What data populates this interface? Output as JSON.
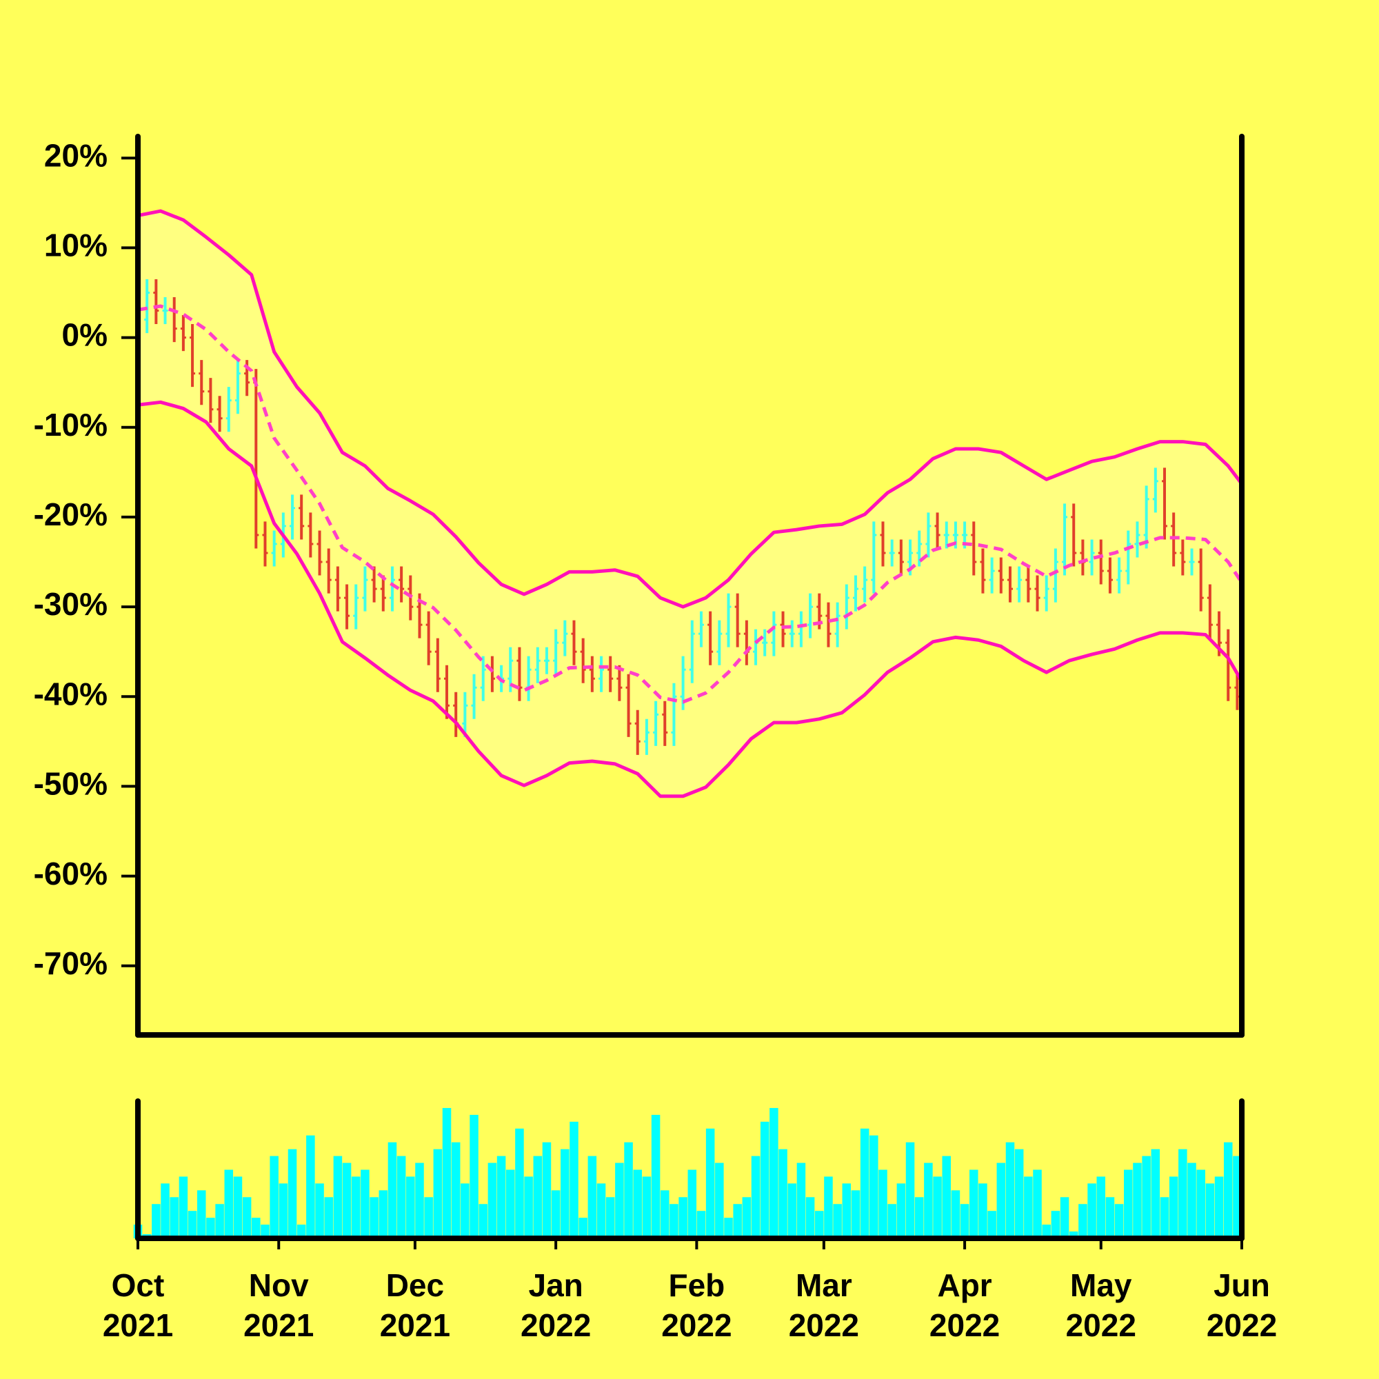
{
  "chart_data": {
    "type": "ohlc",
    "background": "#ffff5a",
    "x": [
      0,
      2,
      4,
      6,
      8,
      10,
      12,
      14,
      16,
      18,
      20,
      22,
      24,
      26,
      28,
      30,
      32,
      34,
      36,
      38,
      40,
      42,
      44,
      46,
      48,
      50,
      52,
      54,
      56,
      58,
      60,
      62,
      64,
      66,
      68,
      70,
      72,
      74,
      76,
      78,
      80,
      82,
      84,
      86,
      88,
      90,
      92,
      94,
      96,
      98,
      100,
      102,
      104,
      106,
      108,
      110,
      112,
      114,
      116,
      118,
      120,
      122,
      124,
      126,
      128,
      130,
      132,
      134,
      136,
      138,
      140,
      142,
      144,
      146,
      148,
      150,
      152,
      154,
      156,
      158,
      160,
      162,
      164,
      166,
      168,
      170,
      172,
      174,
      176,
      178,
      180,
      182,
      184,
      186,
      188,
      190,
      192,
      194,
      196,
      198,
      200,
      202,
      204,
      206,
      208,
      210,
      212,
      214,
      216,
      218,
      220,
      222,
      224,
      226,
      228,
      230,
      232,
      234,
      236,
      238,
      240,
      242
    ],
    "open": [
      1,
      2,
      5,
      3,
      3,
      1,
      0,
      -4,
      -6,
      -8,
      -9,
      -7,
      -4,
      -5,
      -22,
      -24,
      -23,
      -21,
      -19,
      -21,
      -23,
      -25,
      -27,
      -29,
      -31,
      -29,
      -27,
      -28,
      -29,
      -27,
      -28,
      -30,
      -32,
      -35,
      -38,
      -41,
      -43,
      -41,
      -39,
      -37,
      -38,
      -38,
      -36,
      -39,
      -37,
      -36,
      -36,
      -34,
      -33,
      -35,
      -37,
      -38,
      -37,
      -38,
      -39,
      -43,
      -45,
      -44,
      -42,
      -44,
      -40,
      -37,
      -33,
      -32,
      -35,
      -33,
      -30,
      -33,
      -35,
      -34,
      -34,
      -32,
      -33,
      -33,
      -32,
      -30,
      -31,
      -33,
      -31,
      -29,
      -28,
      -27,
      -22,
      -24,
      -24,
      -25,
      -24,
      -23,
      -21,
      -22,
      -22,
      -22,
      -22,
      -25,
      -27,
      -26,
      -27,
      -28,
      -27,
      -28,
      -29,
      -28,
      -25,
      -20,
      -24,
      -25,
      -24,
      -26,
      -27,
      -26,
      -23,
      -22,
      -18,
      -16,
      -21,
      -24,
      -25,
      -25,
      -29,
      -32,
      -34,
      -39
    ],
    "high": [
      3.5,
      6.5,
      6.5,
      4.5,
      4.5,
      2.5,
      1.5,
      -2.5,
      -4.5,
      -6.5,
      -5.5,
      -2.5,
      -2.5,
      -3.5,
      -20.5,
      -21.5,
      -19.5,
      -17.5,
      -17.5,
      -19.5,
      -21.5,
      -23.5,
      -25.5,
      -27.5,
      -27.5,
      -25.5,
      -25.5,
      -26.5,
      -25.5,
      -25.5,
      -26.5,
      -28.5,
      -30.5,
      -33.5,
      -36.5,
      -39.5,
      -39.5,
      -37.5,
      -35.5,
      -35.5,
      -36.5,
      -34.5,
      -34.5,
      -35.5,
      -34.5,
      -34.5,
      -32.5,
      -31.5,
      -31.5,
      -33.5,
      -35.5,
      -35.5,
      -35.5,
      -36.5,
      -37.5,
      -41.5,
      -42.5,
      -40.5,
      -40.5,
      -38.5,
      -35.5,
      -31.5,
      -30.5,
      -30.5,
      -31.5,
      -28.5,
      -28.5,
      -31.5,
      -32.5,
      -32.5,
      -30.5,
      -30.5,
      -31.5,
      -30.5,
      -28.5,
      -28.5,
      -29.5,
      -29.5,
      -27.5,
      -26.5,
      -25.5,
      -20.5,
      -20.5,
      -22.5,
      -22.5,
      -22.5,
      -21.5,
      -19.5,
      -19.5,
      -20.5,
      -20.5,
      -20.5,
      -20.5,
      -23.5,
      -24.5,
      -24.5,
      -25.5,
      -25.5,
      -25.5,
      -26.5,
      -26.5,
      -23.5,
      -18.5,
      -18.5,
      -22.5,
      -22.5,
      -22.5,
      -24.5,
      -24.5,
      -21.5,
      -20.5,
      -16.5,
      -14.5,
      -14.5,
      -19.5,
      -22.5,
      -23.5,
      -23.5,
      -27.5,
      -30.5,
      -32.5,
      -37.5
    ],
    "low": [
      -0.5,
      0.5,
      1.5,
      1.5,
      -0.5,
      -1.5,
      -5.5,
      -7.5,
      -9.5,
      -10.5,
      -10.5,
      -8.5,
      -6.5,
      -23.5,
      -25.5,
      -25.5,
      -24.5,
      -22.5,
      -22.5,
      -24.5,
      -26.5,
      -28.5,
      -30.5,
      -32.5,
      -32.5,
      -30.5,
      -29.5,
      -30.5,
      -30.5,
      -29.5,
      -31.5,
      -33.5,
      -36.5,
      -39.5,
      -42.5,
      -44.5,
      -44.5,
      -42.5,
      -40.5,
      -39.5,
      -39.5,
      -39.5,
      -40.5,
      -40.5,
      -38.5,
      -37.5,
      -37.5,
      -35.5,
      -36.5,
      -38.5,
      -39.5,
      -39.5,
      -39.5,
      -40.5,
      -44.5,
      -46.5,
      -46.5,
      -45.5,
      -45.5,
      -45.5,
      -41.5,
      -38.5,
      -34.5,
      -36.5,
      -36.5,
      -34.5,
      -34.5,
      -36.5,
      -36.5,
      -35.5,
      -35.5,
      -34.5,
      -34.5,
      -34.5,
      -33.5,
      -32.5,
      -34.5,
      -34.5,
      -32.5,
      -30.5,
      -29.5,
      -28.5,
      -25.5,
      -25.5,
      -26.5,
      -26.5,
      -25.5,
      -24.5,
      -23.5,
      -23.5,
      -23.5,
      -23.5,
      -26.5,
      -28.5,
      -28.5,
      -28.5,
      -29.5,
      -29.5,
      -29.5,
      -30.5,
      -30.5,
      -29.5,
      -26.5,
      -25.5,
      -26.5,
      -26.5,
      -27.5,
      -28.5,
      -28.5,
      -27.5,
      -24.5,
      -23.5,
      -19.5,
      -22.5,
      -25.5,
      -26.5,
      -26.5,
      -30.5,
      -33.5,
      -35.5,
      -40.5,
      -41.5
    ],
    "close": [
      2,
      5,
      3,
      3,
      1,
      0,
      -4,
      -6,
      -8,
      -9,
      -7,
      -4,
      -5,
      -22,
      -24,
      -23,
      -21,
      -19,
      -21,
      -23,
      -25,
      -27,
      -29,
      -31,
      -29,
      -27,
      -28,
      -29,
      -27,
      -28,
      -30,
      -32,
      -35,
      -38,
      -41,
      -43,
      -41,
      -39,
      -37,
      -38,
      -38,
      -36,
      -39,
      -37,
      -36,
      -36,
      -34,
      -33,
      -35,
      -37,
      -38,
      -37,
      -38,
      -39,
      -43,
      -45,
      -44,
      -42,
      -44,
      -40,
      -37,
      -33,
      -32,
      -35,
      -33,
      -30,
      -33,
      -35,
      -34,
      -34,
      -32,
      -33,
      -33,
      -32,
      -30,
      -31,
      -33,
      -31,
      -29,
      -28,
      -27,
      -22,
      -24,
      -24,
      -25,
      -24,
      -23,
      -21,
      -22,
      -22,
      -22,
      -22,
      -25,
      -27,
      -26,
      -27,
      -28,
      -27,
      -28,
      -29,
      -28,
      -25,
      -20,
      -24,
      -25,
      -24,
      -26,
      -27,
      -26,
      -23,
      -22,
      -18,
      -16,
      -21,
      -24,
      -25,
      -25,
      -29,
      -32,
      -34,
      -39,
      -40
    ],
    "up_color": "#40ffe8",
    "down_color": "#e0402a",
    "xlim": [
      0,
      243
    ],
    "xticks": [
      {
        "value": 0,
        "label": "Oct 2021"
      },
      {
        "value": 31,
        "label": "Nov 2021"
      },
      {
        "value": 61,
        "label": "Dec 2021"
      },
      {
        "value": 92,
        "label": "Jan 2022"
      },
      {
        "value": 123,
        "label": "Feb 2022"
      },
      {
        "value": 151,
        "label": "Mar 2022"
      },
      {
        "value": 182,
        "label": "Apr 2022"
      },
      {
        "value": 212,
        "label": "May 2022"
      },
      {
        "value": 243,
        "label": "Jun 2022"
      }
    ],
    "ylim": [
      -77.7,
      22.4
    ],
    "yticks": [
      {
        "value": -70,
        "label": "-70%"
      },
      {
        "value": -60,
        "label": "-60%"
      },
      {
        "value": -50,
        "label": "-50%"
      },
      {
        "value": -40,
        "label": "-40%"
      },
      {
        "value": -30,
        "label": "-30%"
      },
      {
        "value": -20,
        "label": "-20%"
      },
      {
        "value": -10,
        "label": "-10%"
      },
      {
        "value": 0,
        "label": "0%"
      },
      {
        "value": 10,
        "label": "10%"
      },
      {
        "value": 20,
        "label": "20%"
      }
    ],
    "bands": {
      "x": [
        0,
        5,
        10,
        15,
        20,
        25,
        30,
        35,
        40,
        45,
        50,
        55,
        60,
        65,
        70,
        75,
        80,
        85,
        90,
        95,
        100,
        105,
        110,
        115,
        120,
        125,
        130,
        135,
        140,
        145,
        150,
        155,
        160,
        165,
        170,
        175,
        180,
        185,
        190,
        195,
        200,
        205,
        210,
        215,
        220,
        225,
        230,
        235,
        240,
        243
      ],
      "upper": [
        13.6,
        14.1,
        13.1,
        11.2,
        9.2,
        7,
        -1.6,
        -5.5,
        -8.4,
        -12.8,
        -14.3,
        -16.8,
        -18.2,
        -19.7,
        -22.2,
        -25.1,
        -27.5,
        -28.6,
        -27.5,
        -26.1,
        -26.1,
        -25.9,
        -26.6,
        -29,
        -30,
        -29,
        -27,
        -24.1,
        -21.7,
        -21.4,
        -21,
        -20.8,
        -19.7,
        -17.3,
        -15.8,
        -13.5,
        -12.4,
        -12.4,
        -12.8,
        -14.3,
        -15.8,
        -14.8,
        -13.8,
        -13.3,
        -12.4,
        -11.6,
        -11.6,
        -11.9,
        -14.3,
        -16.3
      ],
      "middle": [
        3.1,
        3.5,
        2.6,
        0.9,
        -1.6,
        -3.7,
        -11.2,
        -14.8,
        -18.5,
        -23.4,
        -25,
        -27.2,
        -28.8,
        -30.1,
        -32.6,
        -35.6,
        -38.2,
        -39.3,
        -38.2,
        -36.8,
        -36.7,
        -36.7,
        -37.6,
        -40.1,
        -40.6,
        -39.6,
        -37.3,
        -34.4,
        -32.3,
        -32.2,
        -31.8,
        -31.3,
        -29.8,
        -27.3,
        -25.8,
        -23.7,
        -22.9,
        -23.1,
        -23.6,
        -25.2,
        -26.6,
        -25.4,
        -24.6,
        -24,
        -23.1,
        -22.3,
        -22.3,
        -22.5,
        -25,
        -27.3
      ],
      "lower": [
        -7.5,
        -7.2,
        -7.9,
        -9.4,
        -12.4,
        -14.3,
        -20.7,
        -24.1,
        -28.5,
        -33.9,
        -35.7,
        -37.6,
        -39.3,
        -40.5,
        -42.9,
        -46.1,
        -48.8,
        -49.9,
        -48.8,
        -47.4,
        -47.2,
        -47.5,
        -48.6,
        -51.1,
        -51.1,
        -50.1,
        -47.6,
        -44.7,
        -42.9,
        -42.9,
        -42.5,
        -41.8,
        -39.8,
        -37.3,
        -35.7,
        -33.9,
        -33.4,
        -33.7,
        -34.4,
        -36,
        -37.3,
        -36,
        -35.3,
        -34.7,
        -33.7,
        -32.9,
        -32.9,
        -33.1,
        -35.7,
        -38.3
      ],
      "color": "#ff10b8",
      "middle_color": "#ff40c8",
      "fill": "#ffff80"
    },
    "volume": {
      "values": [
        10,
        3,
        25,
        40,
        30,
        45,
        20,
        35,
        15,
        25,
        50,
        45,
        30,
        15,
        10,
        60,
        40,
        65,
        10,
        75,
        40,
        30,
        60,
        55,
        45,
        50,
        30,
        35,
        70,
        60,
        45,
        55,
        30,
        65,
        95,
        70,
        40,
        90,
        25,
        55,
        60,
        50,
        80,
        45,
        60,
        70,
        35,
        65,
        85,
        15,
        60,
        40,
        30,
        55,
        70,
        50,
        45,
        90,
        35,
        25,
        30,
        50,
        20,
        80,
        55,
        15,
        25,
        30,
        60,
        85,
        95,
        65,
        40,
        55,
        30,
        20,
        45,
        25,
        40,
        35,
        80,
        75,
        50,
        25,
        40,
        70,
        30,
        55,
        45,
        60,
        35,
        25,
        50,
        40,
        20,
        55,
        70,
        65,
        45,
        50,
        10,
        20,
        30,
        5,
        25,
        40,
        45,
        30,
        25,
        50,
        55,
        60,
        65,
        30,
        45,
        65,
        55,
        50,
        40,
        45,
        70,
        60
      ],
      "ylim": [
        0,
        100
      ],
      "color": "#00ffff"
    }
  }
}
